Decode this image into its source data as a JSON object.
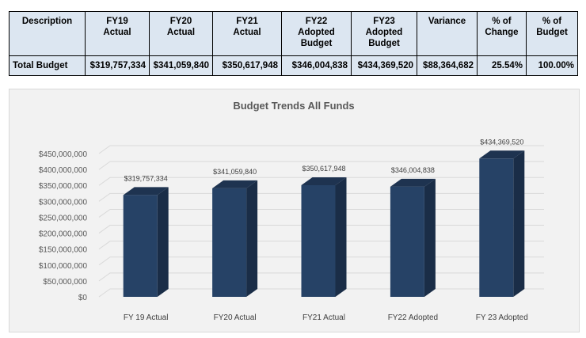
{
  "table": {
    "headers": [
      "Description",
      "FY19\nActual",
      "FY20\nActual",
      "FY21\nActual",
      "FY22\nAdopted\nBudget",
      "FY23\nAdopted\nBudget",
      "Variance",
      "% of\nChange",
      "% of\nBudget"
    ],
    "rows": [
      [
        "Total Budget",
        "$319,757,334",
        "$341,059,840",
        "$350,617,948",
        "$346,004,838",
        "$434,369,520",
        "$88,364,682",
        "25.54%",
        "100.00%"
      ]
    ]
  },
  "chart_data": {
    "type": "bar",
    "title": "Budget Trends All Funds",
    "categories": [
      "FY 19 Actual",
      "FY20 Actual",
      "FY21 Actual",
      "FY22 Adopted",
      "FY 23 Adopted"
    ],
    "values": [
      319757334,
      341059840,
      350617948,
      346004838,
      434369520
    ],
    "data_labels": [
      "$319,757,334",
      "$341,059,840",
      "$350,617,948",
      "$346,004,838",
      "$434,369,520"
    ],
    "ylim": [
      0,
      450000000
    ],
    "yticks": [
      0,
      50000000,
      100000000,
      150000000,
      200000000,
      250000000,
      300000000,
      350000000,
      400000000,
      450000000
    ],
    "ytick_labels": [
      "$0",
      "$50,000,000",
      "$100,000,000",
      "$150,000,000",
      "$200,000,000",
      "$250,000,000",
      "$300,000,000",
      "$350,000,000",
      "$400,000,000",
      "$450,000,000"
    ],
    "xlabel": "",
    "ylabel": "",
    "grid": true,
    "colors": {
      "bar_front": "#264266",
      "bar_side": "#1a2d47",
      "bar_top": "#1e3350"
    }
  }
}
